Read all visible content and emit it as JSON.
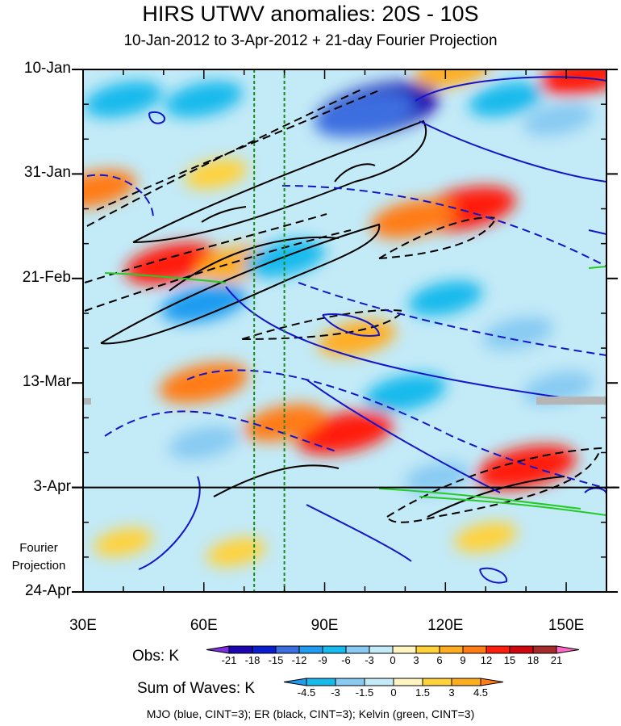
{
  "chart_data": {
    "type": "heatmap",
    "title": "HIRS UTWV anomalies: 20S - 10S",
    "subtitle": "10-Jan-2012 to 3-Apr-2012 + 21-day Fourier Projection",
    "x_ticks": [
      {
        "label": "30E",
        "value": 30
      },
      {
        "label": "60E",
        "value": 60
      },
      {
        "label": "90E",
        "value": 90
      },
      {
        "label": "120E",
        "value": 120
      },
      {
        "label": "150E",
        "value": 150
      }
    ],
    "xlim": [
      30,
      160
    ],
    "y_ticks": [
      {
        "label": "10-Jan",
        "value": 0
      },
      {
        "label": "31-Jan",
        "value": 21
      },
      {
        "label": "21-Feb",
        "value": 42
      },
      {
        "label": "13-Mar",
        "value": 63
      },
      {
        "label": "3-Apr",
        "value": 84
      },
      {
        "label": "24-Apr",
        "value": 105
      }
    ],
    "ylim": [
      0,
      105
    ],
    "projection_start_day": 84,
    "projection_label_line1": "Fourier",
    "projection_label_line2": "Projection",
    "reference_longitudes": [
      72.5,
      80
    ],
    "obs_colorbar": {
      "label": "Obs: K",
      "levels": [
        "-21",
        "-18",
        "-15",
        "-12",
        "-9",
        "-6",
        "-3",
        "0",
        "3",
        "6",
        "9",
        "12",
        "15",
        "18",
        "21"
      ],
      "colors": [
        "#7d2ee0",
        "#1a05b0",
        "#0b1ecf",
        "#3c6ee0",
        "#1f9bf0",
        "#18b9ec",
        "#88caf2",
        "#c3eaf7",
        "#fff5c0",
        "#ffd13b",
        "#ffad20",
        "#ff7c16",
        "#ff1e0e",
        "#d0070f",
        "#a52a2a",
        "#ff69c6"
      ]
    },
    "waves_colorbar": {
      "label": "Sum of Waves: K",
      "levels": [
        "-4.5",
        "-3",
        "-1.5",
        "0",
        "1.5",
        "3",
        "4.5"
      ],
      "colors": [
        "#1f9bf0",
        "#18b9ec",
        "#88caf2",
        "#c3eaf7",
        "#fff5c0",
        "#ffd13b",
        "#ffad20",
        "#ff7c16"
      ]
    },
    "footer": "MJO (blue, CINT=3); ER (black, CINT=3); Kelvin (green, CINT=3)",
    "anomaly_blobs": [
      {
        "lon": 103,
        "day": 8,
        "value": -20
      },
      {
        "lon": 100,
        "day": 9,
        "value": -14
      },
      {
        "lon": 40,
        "day": 6,
        "value": -8
      },
      {
        "lon": 60,
        "day": 6,
        "value": -8
      },
      {
        "lon": 135,
        "day": 6,
        "value": -7
      },
      {
        "lon": 148,
        "day": 10,
        "value": -6
      },
      {
        "lon": 122,
        "day": 0,
        "value": 8
      },
      {
        "lon": 155,
        "day": 1,
        "value": 12
      },
      {
        "lon": 33,
        "day": 24,
        "value": 9
      },
      {
        "lon": 63,
        "day": 21,
        "value": 4
      },
      {
        "lon": 125,
        "day": 28,
        "value": 14
      },
      {
        "lon": 112,
        "day": 30,
        "value": 10
      },
      {
        "lon": 52,
        "day": 39,
        "value": 12
      },
      {
        "lon": 68,
        "day": 39,
        "value": 8
      },
      {
        "lon": 80,
        "day": 38,
        "value": -9
      },
      {
        "lon": 60,
        "day": 47,
        "value": -10
      },
      {
        "lon": 120,
        "day": 46,
        "value": -7
      },
      {
        "lon": 98,
        "day": 54,
        "value": 8
      },
      {
        "lon": 138,
        "day": 53,
        "value": -6
      },
      {
        "lon": 60,
        "day": 63,
        "value": 11
      },
      {
        "lon": 110,
        "day": 65,
        "value": -9
      },
      {
        "lon": 148,
        "day": 64,
        "value": -6
      },
      {
        "lon": 95,
        "day": 73,
        "value": 13
      },
      {
        "lon": 80,
        "day": 71,
        "value": 9
      },
      {
        "lon": 60,
        "day": 75,
        "value": -6
      },
      {
        "lon": 140,
        "day": 80,
        "value": 14
      },
      {
        "lon": 118,
        "day": 82,
        "value": -5
      },
      {
        "lon": 40,
        "day": 95,
        "value": 3
      },
      {
        "lon": 68,
        "day": 97,
        "value": 3
      },
      {
        "lon": 130,
        "day": 94,
        "value": 4
      },
      {
        "lon": 100,
        "day": 99,
        "value": -2
      }
    ]
  }
}
